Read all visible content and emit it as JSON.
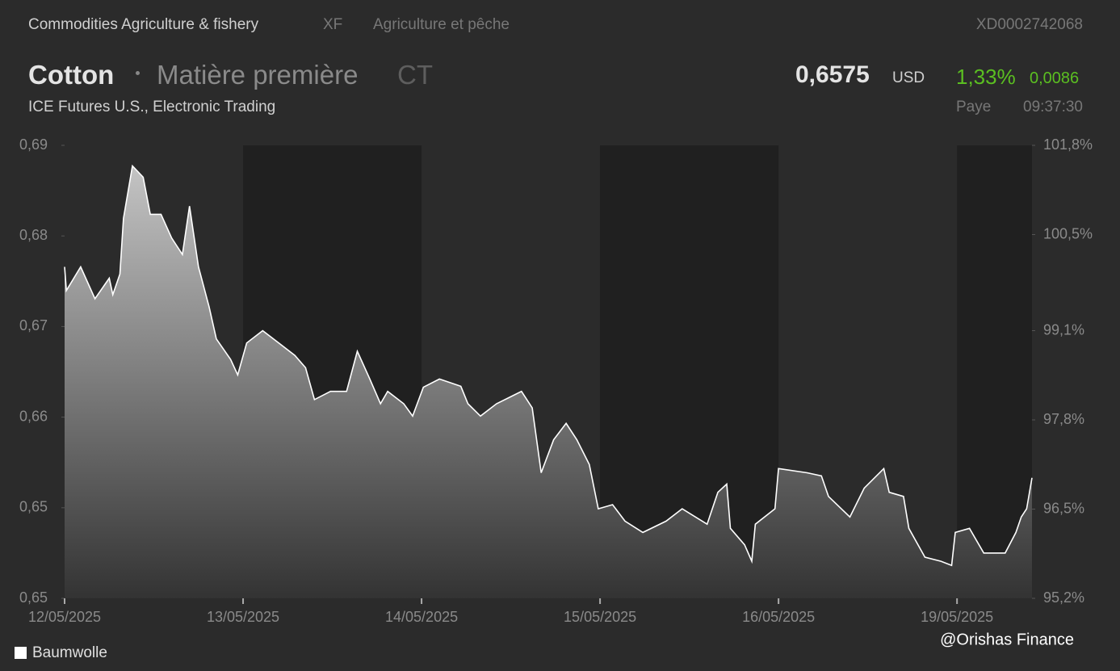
{
  "header": {
    "category": "Commodities Agriculture & fishery",
    "code": "XF",
    "category_fr": "Agriculture et pêche",
    "isin": "XD0002742068"
  },
  "instrument": {
    "name": "Cotton",
    "type": "Matière première",
    "symbol": "CT",
    "exchange": "ICE Futures U.S., Electronic Trading"
  },
  "quote": {
    "price": "0,6575",
    "currency": "USD",
    "change_pct": "1,33%",
    "change": "0,0086",
    "status": "Paye",
    "time": "09:37:30"
  },
  "chart_data": {
    "type": "area",
    "x": [
      0,
      0.01,
      0.09,
      0.17,
      0.25,
      0.27,
      0.31,
      0.33,
      0.38,
      0.44,
      0.48,
      0.54,
      0.6,
      0.66,
      0.7,
      0.75,
      0.81,
      0.85,
      0.93,
      0.97,
      1.02,
      1.11,
      1.2,
      1.29,
      1.35,
      1.4,
      1.49,
      1.58,
      1.64,
      1.71,
      1.77,
      1.81,
      1.9,
      1.95,
      2.01,
      2.1,
      2.22,
      2.26,
      2.33,
      2.42,
      2.56,
      2.62,
      2.67,
      2.74,
      2.81,
      2.87,
      2.94,
      2.99,
      3.07,
      3.14,
      3.24,
      3.37,
      3.46,
      3.6,
      3.66,
      3.71,
      3.73,
      3.81,
      3.85,
      3.87,
      3.98,
      4.0,
      4.16,
      4.24,
      4.28,
      4.4,
      4.48,
      4.59,
      4.62,
      4.7,
      4.73,
      4.82,
      4.91,
      4.97,
      4.99,
      5.07,
      5.15,
      5.27,
      5.33,
      5.36,
      5.39,
      5.42
    ],
    "series": [
      {
        "name": "Baumwolle",
        "color": "#ffffff",
        "values": [
          0.6774,
          0.6751,
          0.6774,
          0.6743,
          0.6763,
          0.6747,
          0.6767,
          0.6821,
          0.6872,
          0.6861,
          0.6825,
          0.6825,
          0.6802,
          0.6786,
          0.6833,
          0.6774,
          0.6735,
          0.6704,
          0.6684,
          0.6669,
          0.67,
          0.6712,
          0.67,
          0.6688,
          0.6676,
          0.6645,
          0.6653,
          0.6653,
          0.6692,
          0.6665,
          0.6641,
          0.6653,
          0.6641,
          0.6629,
          0.6657,
          0.6665,
          0.6658,
          0.6641,
          0.6629,
          0.6641,
          0.6653,
          0.6637,
          0.6574,
          0.6606,
          0.6622,
          0.6606,
          0.6582,
          0.6539,
          0.6543,
          0.6527,
          0.6516,
          0.6527,
          0.6539,
          0.6524,
          0.6555,
          0.6563,
          0.652,
          0.6504,
          0.6488,
          0.6524,
          0.6539,
          0.6578,
          0.6574,
          0.6571,
          0.6551,
          0.6531,
          0.6559,
          0.6578,
          0.6555,
          0.6551,
          0.652,
          0.6492,
          0.6488,
          0.6484,
          0.6516,
          0.652,
          0.6496,
          0.6496,
          0.6516,
          0.6531,
          0.6539,
          0.6569
        ]
      }
    ],
    "xlim": [
      0,
      5.42
    ],
    "xticks": [
      {
        "value": 0,
        "label": "12/05/2025"
      },
      {
        "value": 1,
        "label": "13/05/2025"
      },
      {
        "value": 2,
        "label": "14/05/2025"
      },
      {
        "value": 3,
        "label": "15/05/2025"
      },
      {
        "value": 4,
        "label": "16/05/2025"
      },
      {
        "value": 5,
        "label": "19/05/2025"
      }
    ],
    "ylim": [
      0.6452,
      0.6892
    ],
    "yticks": [
      {
        "value": 0.6892,
        "label": "0,69"
      },
      {
        "value": 0.6804,
        "label": "0,68"
      },
      {
        "value": 0.6716,
        "label": "0,67"
      },
      {
        "value": 0.6628,
        "label": "0,66"
      },
      {
        "value": 0.654,
        "label": "0,65"
      },
      {
        "value": 0.6452,
        "label": "0,65"
      }
    ],
    "y2lim": [
      95.2,
      101.8
    ],
    "y2ticks": [
      {
        "value": 101.8,
        "label": "101,8%"
      },
      {
        "value": 100.5,
        "label": "100,5%"
      },
      {
        "value": 99.1,
        "label": "99,1%"
      },
      {
        "value": 97.8,
        "label": "97,8%"
      },
      {
        "value": 96.5,
        "label": "96,5%"
      },
      {
        "value": 95.2,
        "label": "95,2%"
      }
    ],
    "legend": "bottom-left",
    "annotation": "@Orishas Finance"
  }
}
